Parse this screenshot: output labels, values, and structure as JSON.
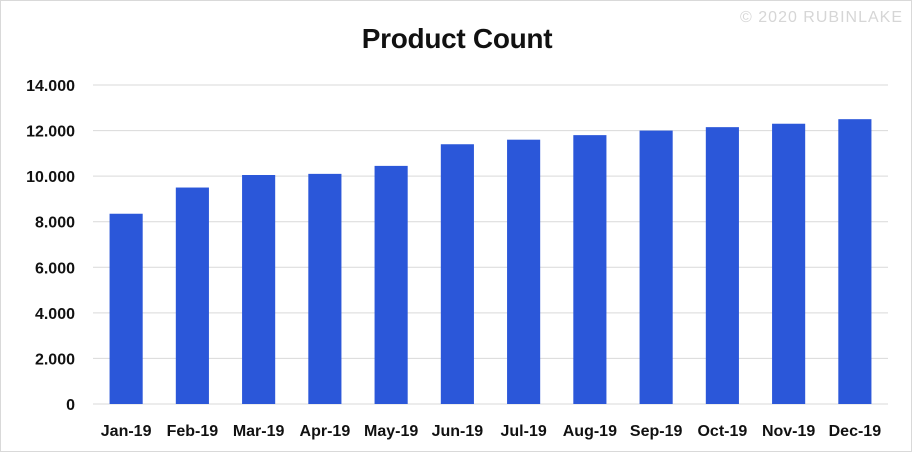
{
  "watermark": "© 2020 RUBINLAKE",
  "chart_data": {
    "type": "bar",
    "title": "Product Count",
    "xlabel": "",
    "ylabel": "",
    "categories": [
      "Jan-19",
      "Feb-19",
      "Mar-19",
      "Apr-19",
      "May-19",
      "Jun-19",
      "Jul-19",
      "Aug-19",
      "Sep-19",
      "Oct-19",
      "Nov-19",
      "Dec-19"
    ],
    "values": [
      8350,
      9500,
      10050,
      10100,
      10450,
      11400,
      11600,
      11800,
      12000,
      12150,
      12300,
      12500
    ],
    "ylim": [
      0,
      14000
    ],
    "yticks": [
      0,
      2000,
      4000,
      6000,
      8000,
      10000,
      12000,
      14000
    ],
    "ytick_labels": [
      "0",
      "2.000",
      "4.000",
      "6.000",
      "8.000",
      "10.000",
      "12.000",
      "14.000"
    ],
    "grid": true,
    "bar_color": "#2b57d9",
    "grid_color": "#d9d9d9"
  }
}
